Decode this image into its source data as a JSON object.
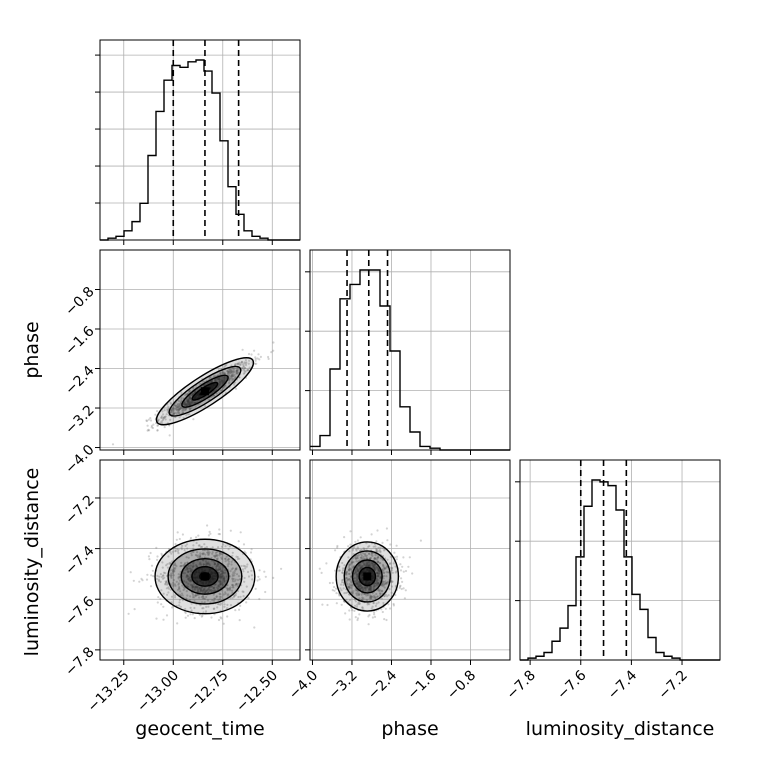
{
  "chart_data": {
    "type": "corner",
    "parameters": [
      "geocent_time",
      "phase",
      "luminosity_distance"
    ],
    "grid": true,
    "colors": {
      "line": "#000000",
      "grid": "#b0b0b0",
      "points": "#808080",
      "fill": "#000000"
    },
    "ranges": {
      "geocent_time": [
        -13.37,
        -12.36
      ],
      "phase": [
        -4.05,
        0.0
      ],
      "luminosity_distance": [
        -7.84,
        -7.05
      ]
    },
    "ticks": {
      "geocent_time": [
        -13.25,
        -13.0,
        -12.75,
        -12.5
      ],
      "phase": [
        -4.0,
        -3.2,
        -2.4,
        -1.6,
        -0.8
      ],
      "luminosity_distance": [
        -7.8,
        -7.6,
        -7.4,
        -7.2
      ]
    },
    "tick_labels": {
      "geocent_time": [
        "−13.25",
        "−13.00",
        "−12.75",
        "−12.50"
      ],
      "phase": [
        "−4.0",
        "−3.2",
        "−2.4",
        "−1.6",
        "−0.8"
      ],
      "luminosity_distance": [
        "−7.8",
        "−7.6",
        "−7.4",
        "−7.2"
      ]
    },
    "quantiles": {
      "geocent_time": [
        -13.0,
        -12.84,
        -12.67
      ],
      "phase": [
        -3.3,
        -2.86,
        -2.48
      ],
      "luminosity_distance": [
        -7.6,
        -7.51,
        -7.42
      ]
    },
    "histograms": {
      "geocent_time": {
        "min": -13.37,
        "max": -12.36,
        "counts": [
          0,
          1,
          2,
          5,
          10,
          20,
          46,
          70,
          87,
          95,
          94,
          97,
          98,
          92,
          80,
          54,
          29,
          14,
          5,
          2,
          1,
          0,
          0,
          0,
          0
        ]
      },
      "phase": {
        "min": -4.05,
        "max": 0.0,
        "counts": [
          2,
          8,
          45,
          84,
          92,
          100,
          100,
          80,
          55,
          24,
          10,
          2,
          1,
          0,
          0,
          0,
          0,
          0,
          0,
          0
        ]
      },
      "luminosity_distance": {
        "min": -7.84,
        "max": -7.05,
        "counts": [
          0,
          1,
          2,
          4,
          10,
          17,
          29,
          55,
          82,
          96,
          95,
          93,
          80,
          55,
          35,
          27,
          12,
          4,
          2,
          1,
          0,
          0,
          0,
          0,
          0
        ]
      }
    },
    "scatter": {
      "phase_vs_geocent_time": {
        "x": "geocent_time",
        "y": "phase",
        "x_mean": -12.84,
        "y_mean": -2.86,
        "x_sd": 0.115,
        "y_sd": 0.3,
        "corr": 0.93
      },
      "luminosity_distance_vs_geocent_time": {
        "x": "geocent_time",
        "y": "luminosity_distance",
        "x_mean": -12.84,
        "y_mean": -7.51,
        "x_sd": 0.12,
        "y_sd": 0.07,
        "corr": 0.0
      },
      "luminosity_distance_vs_phase": {
        "x": "phase",
        "y": "luminosity_distance",
        "x_mean": -2.89,
        "y_mean": -7.51,
        "x_sd": 0.3,
        "y_sd": 0.065,
        "corr": 0.0
      }
    }
  }
}
